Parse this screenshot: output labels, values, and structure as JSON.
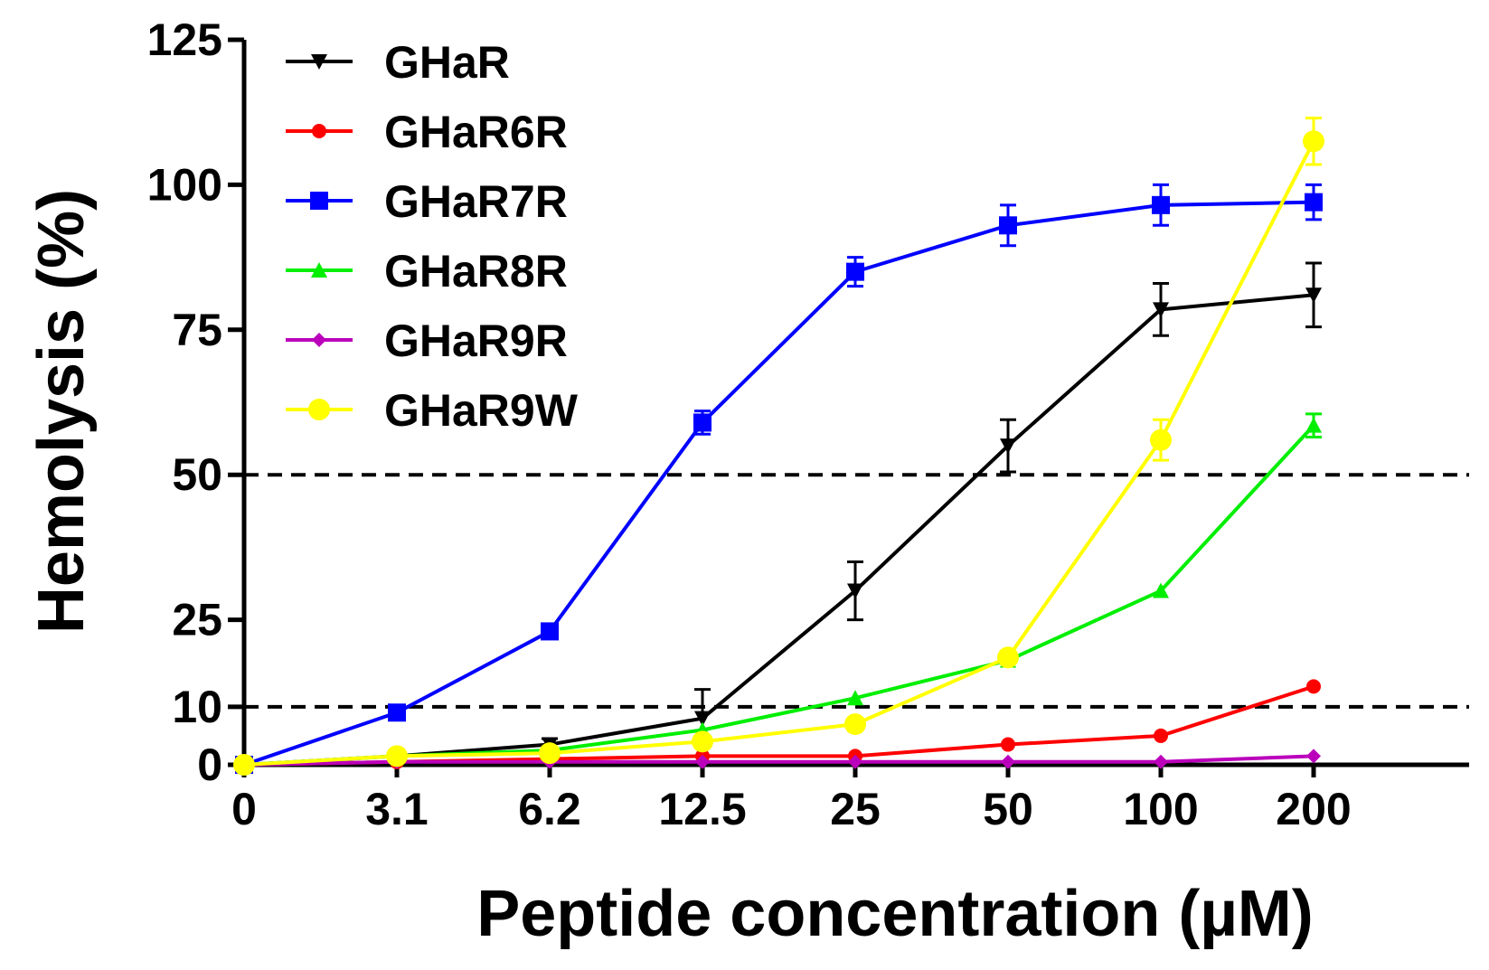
{
  "chart_data": {
    "type": "line",
    "title": "",
    "xlabel": "Peptide concentration (µM)",
    "ylabel": "Hemolysis (%)",
    "categories": [
      "0",
      "3.1",
      "6.2",
      "12.5",
      "25",
      "50",
      "100",
      "200"
    ],
    "ylim": [
      0,
      125
    ],
    "yticks": [
      0,
      10,
      25,
      50,
      75,
      100,
      125
    ],
    "reference_lines": [
      50,
      10
    ],
    "legend_position": "top-left",
    "series": [
      {
        "name": "GHaR",
        "color": "#000000",
        "marker": "triangle-down",
        "values": [
          0,
          1.5,
          3.5,
          8,
          30,
          55,
          78.5,
          81
        ],
        "errors": [
          0,
          0.5,
          1,
          5,
          5,
          4.5,
          4.5,
          5.5
        ]
      },
      {
        "name": "GHaR6R",
        "color": "#ff0000",
        "marker": "circle-small",
        "values": [
          0,
          0.5,
          1,
          1.5,
          1.5,
          3.5,
          5,
          13.5
        ],
        "errors": [
          0,
          0,
          0,
          0,
          0,
          0,
          0,
          0
        ]
      },
      {
        "name": "GHaR7R",
        "color": "#0000ff",
        "marker": "square",
        "values": [
          0,
          9,
          23,
          59,
          85,
          93,
          96.5,
          97
        ],
        "errors": [
          0,
          0,
          0,
          2,
          2.5,
          3.5,
          3.5,
          3
        ]
      },
      {
        "name": "GHaR8R",
        "color": "#00ee00",
        "marker": "triangle-up",
        "values": [
          0,
          1.5,
          2.5,
          6,
          11.5,
          18,
          30,
          58.5
        ],
        "errors": [
          0,
          0,
          0,
          0,
          0,
          0,
          0,
          2
        ]
      },
      {
        "name": "GHaR9R",
        "color": "#bb00bb",
        "marker": "diamond",
        "values": [
          0,
          0.5,
          0.5,
          0.5,
          0.5,
          0.5,
          0.5,
          1.5
        ],
        "errors": [
          0,
          0,
          0,
          0,
          0,
          0,
          0,
          0
        ]
      },
      {
        "name": "GHaR9W",
        "color": "#ffff00",
        "marker": "circle",
        "values": [
          0,
          1.5,
          2,
          4,
          7,
          18.5,
          56,
          107.5
        ],
        "errors": [
          0,
          0,
          0,
          0,
          0,
          0,
          3.5,
          4
        ]
      }
    ]
  }
}
